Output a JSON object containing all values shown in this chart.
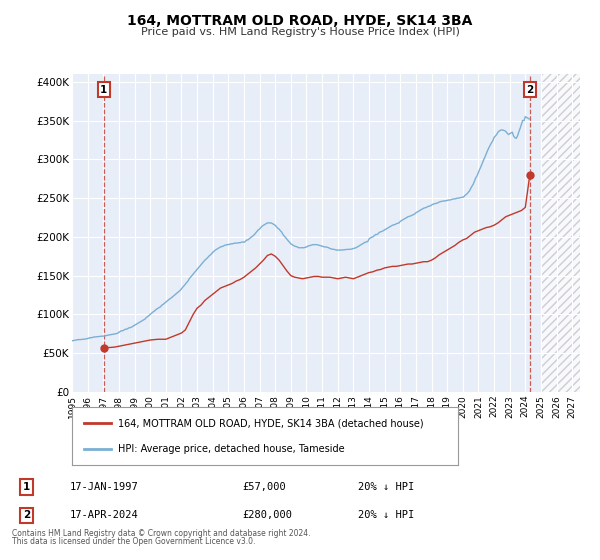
{
  "title": "164, MOTTRAM OLD ROAD, HYDE, SK14 3BA",
  "subtitle": "Price paid vs. HM Land Registry's House Price Index (HPI)",
  "xlim": [
    1995.0,
    2027.5
  ],
  "ylim": [
    0,
    410000
  ],
  "yticks": [
    0,
    50000,
    100000,
    150000,
    200000,
    250000,
    300000,
    350000,
    400000
  ],
  "ytick_labels": [
    "£0",
    "£50K",
    "£100K",
    "£150K",
    "£200K",
    "£250K",
    "£300K",
    "£350K",
    "£400K"
  ],
  "xticks": [
    1995,
    1996,
    1997,
    1998,
    1999,
    2000,
    2001,
    2002,
    2003,
    2004,
    2005,
    2006,
    2007,
    2008,
    2009,
    2010,
    2011,
    2012,
    2013,
    2014,
    2015,
    2016,
    2017,
    2018,
    2019,
    2020,
    2021,
    2022,
    2023,
    2024,
    2025,
    2026,
    2027
  ],
  "background_color": "#ffffff",
  "plot_bg_color": "#e8eef8",
  "grid_color": "#ffffff",
  "hpi_color": "#7bafd4",
  "price_color": "#c0392b",
  "marker1_x": 1997.04,
  "marker1_y": 57000,
  "marker2_x": 2024.29,
  "marker2_y": 280000,
  "vline1_x": 1997.04,
  "vline2_x": 2024.29,
  "hatch_start": 2025.0,
  "legend_label1": "164, MOTTRAM OLD ROAD, HYDE, SK14 3BA (detached house)",
  "legend_label2": "HPI: Average price, detached house, Tameside",
  "table_row1": [
    "1",
    "17-JAN-1997",
    "£57,000",
    "20% ↓ HPI"
  ],
  "table_row2": [
    "2",
    "17-APR-2024",
    "£280,000",
    "20% ↓ HPI"
  ],
  "footnote1": "Contains HM Land Registry data © Crown copyright and database right 2024.",
  "footnote2": "This data is licensed under the Open Government Licence v3.0.",
  "hpi_x": [
    1995.0,
    1995.08,
    1995.17,
    1995.25,
    1995.33,
    1995.42,
    1995.5,
    1995.58,
    1995.67,
    1995.75,
    1995.83,
    1995.92,
    1996.0,
    1996.08,
    1996.17,
    1996.25,
    1996.33,
    1996.42,
    1996.5,
    1996.58,
    1996.67,
    1996.75,
    1996.83,
    1996.92,
    1997.0,
    1997.08,
    1997.17,
    1997.25,
    1997.33,
    1997.42,
    1997.5,
    1997.58,
    1997.67,
    1997.75,
    1997.83,
    1997.92,
    1998.0,
    1998.08,
    1998.17,
    1998.25,
    1998.33,
    1998.42,
    1998.5,
    1998.58,
    1998.67,
    1998.75,
    1998.83,
    1998.92,
    1999.0,
    1999.08,
    1999.17,
    1999.25,
    1999.33,
    1999.42,
    1999.5,
    1999.58,
    1999.67,
    1999.75,
    1999.83,
    1999.92,
    2000.0,
    2000.08,
    2000.17,
    2000.25,
    2000.33,
    2000.42,
    2000.5,
    2000.58,
    2000.67,
    2000.75,
    2000.83,
    2000.92,
    2001.0,
    2001.08,
    2001.17,
    2001.25,
    2001.33,
    2001.42,
    2001.5,
    2001.58,
    2001.67,
    2001.75,
    2001.83,
    2001.92,
    2002.0,
    2002.08,
    2002.17,
    2002.25,
    2002.33,
    2002.42,
    2002.5,
    2002.58,
    2002.67,
    2002.75,
    2002.83,
    2002.92,
    2003.0,
    2003.08,
    2003.17,
    2003.25,
    2003.33,
    2003.42,
    2003.5,
    2003.58,
    2003.67,
    2003.75,
    2003.83,
    2003.92,
    2004.0,
    2004.08,
    2004.17,
    2004.25,
    2004.33,
    2004.42,
    2004.5,
    2004.58,
    2004.67,
    2004.75,
    2004.83,
    2004.92,
    2005.0,
    2005.08,
    2005.17,
    2005.25,
    2005.33,
    2005.42,
    2005.5,
    2005.58,
    2005.67,
    2005.75,
    2005.83,
    2005.92,
    2006.0,
    2006.08,
    2006.17,
    2006.25,
    2006.33,
    2006.42,
    2006.5,
    2006.58,
    2006.67,
    2006.75,
    2006.83,
    2006.92,
    2007.0,
    2007.08,
    2007.17,
    2007.25,
    2007.33,
    2007.42,
    2007.5,
    2007.58,
    2007.67,
    2007.75,
    2007.83,
    2007.92,
    2008.0,
    2008.08,
    2008.17,
    2008.25,
    2008.33,
    2008.42,
    2008.5,
    2008.58,
    2008.67,
    2008.75,
    2008.83,
    2008.92,
    2009.0,
    2009.08,
    2009.17,
    2009.25,
    2009.33,
    2009.42,
    2009.5,
    2009.58,
    2009.67,
    2009.75,
    2009.83,
    2009.92,
    2010.0,
    2010.08,
    2010.17,
    2010.25,
    2010.33,
    2010.42,
    2010.5,
    2010.58,
    2010.67,
    2010.75,
    2010.83,
    2010.92,
    2011.0,
    2011.08,
    2011.17,
    2011.25,
    2011.33,
    2011.42,
    2011.5,
    2011.58,
    2011.67,
    2011.75,
    2011.83,
    2011.92,
    2012.0,
    2012.08,
    2012.17,
    2012.25,
    2012.33,
    2012.42,
    2012.5,
    2012.58,
    2012.67,
    2012.75,
    2012.83,
    2012.92,
    2013.0,
    2013.08,
    2013.17,
    2013.25,
    2013.33,
    2013.42,
    2013.5,
    2013.58,
    2013.67,
    2013.75,
    2013.83,
    2013.92,
    2014.0,
    2014.08,
    2014.17,
    2014.25,
    2014.33,
    2014.42,
    2014.5,
    2014.58,
    2014.67,
    2014.75,
    2014.83,
    2014.92,
    2015.0,
    2015.08,
    2015.17,
    2015.25,
    2015.33,
    2015.42,
    2015.5,
    2015.58,
    2015.67,
    2015.75,
    2015.83,
    2015.92,
    2016.0,
    2016.08,
    2016.17,
    2016.25,
    2016.33,
    2016.42,
    2016.5,
    2016.58,
    2016.67,
    2016.75,
    2016.83,
    2016.92,
    2017.0,
    2017.08,
    2017.17,
    2017.25,
    2017.33,
    2017.42,
    2017.5,
    2017.58,
    2017.67,
    2017.75,
    2017.83,
    2017.92,
    2018.0,
    2018.08,
    2018.17,
    2018.25,
    2018.33,
    2018.42,
    2018.5,
    2018.58,
    2018.67,
    2018.75,
    2018.83,
    2018.92,
    2019.0,
    2019.08,
    2019.17,
    2019.25,
    2019.33,
    2019.42,
    2019.5,
    2019.58,
    2019.67,
    2019.75,
    2019.83,
    2019.92,
    2020.0,
    2020.08,
    2020.17,
    2020.25,
    2020.33,
    2020.42,
    2020.5,
    2020.58,
    2020.67,
    2020.75,
    2020.83,
    2020.92,
    2021.0,
    2021.08,
    2021.17,
    2021.25,
    2021.33,
    2021.42,
    2021.5,
    2021.58,
    2021.67,
    2021.75,
    2021.83,
    2021.92,
    2022.0,
    2022.08,
    2022.17,
    2022.25,
    2022.33,
    2022.42,
    2022.5,
    2022.58,
    2022.67,
    2022.75,
    2022.83,
    2022.92,
    2023.0,
    2023.08,
    2023.17,
    2023.25,
    2023.33,
    2023.42,
    2023.5,
    2023.58,
    2023.67,
    2023.75,
    2023.83,
    2023.92,
    2024.0,
    2024.08,
    2024.17,
    2024.25
  ],
  "hpi_y": [
    66000,
    66300,
    66600,
    67000,
    67300,
    67600,
    67500,
    67700,
    67900,
    68000,
    68200,
    68500,
    69000,
    69500,
    70000,
    70000,
    70500,
    71000,
    71000,
    71200,
    71500,
    71500,
    71800,
    72000,
    72000,
    72300,
    72700,
    73000,
    73400,
    73700,
    74000,
    74300,
    74600,
    75000,
    75300,
    75700,
    77000,
    78000,
    79000,
    79000,
    80000,
    81000,
    81000,
    82000,
    83000,
    83000,
    84000,
    85000,
    86000,
    87000,
    88000,
    89000,
    90000,
    91000,
    92000,
    93000,
    94000,
    96000,
    97000,
    98500,
    100000,
    101500,
    103000,
    104000,
    105500,
    107000,
    108000,
    109000,
    110000,
    112000,
    113000,
    114500,
    116000,
    117000,
    118500,
    120000,
    121000,
    122500,
    124000,
    125000,
    126500,
    128000,
    129500,
    131000,
    133000,
    135000,
    137000,
    139000,
    141000,
    143000,
    146000,
    148000,
    150000,
    152000,
    154000,
    156000,
    158000,
    160000,
    162000,
    164000,
    166000,
    168000,
    170000,
    171500,
    173000,
    175000,
    176500,
    178000,
    180000,
    181500,
    183000,
    184000,
    185000,
    186000,
    187000,
    187500,
    188000,
    189000,
    189500,
    190000,
    190000,
    190500,
    191000,
    191000,
    191500,
    192000,
    192000,
    192000,
    192500,
    192500,
    193000,
    193500,
    193000,
    194000,
    196000,
    196000,
    197500,
    199000,
    200000,
    201500,
    203000,
    205000,
    207000,
    209000,
    210000,
    212000,
    214000,
    215000,
    216000,
    217000,
    218000,
    218000,
    218000,
    218000,
    217000,
    216000,
    215000,
    213000,
    211000,
    210000,
    208000,
    206000,
    203000,
    201000,
    199000,
    197000,
    195000,
    193000,
    191000,
    190000,
    189000,
    188000,
    187500,
    187000,
    186000,
    186000,
    186000,
    186000,
    186000,
    186500,
    187000,
    188000,
    188500,
    189000,
    189500,
    190000,
    190000,
    190000,
    190000,
    189500,
    189000,
    188500,
    188000,
    187500,
    187000,
    187000,
    186500,
    186000,
    185000,
    184500,
    184000,
    184000,
    183500,
    183000,
    183000,
    183000,
    183000,
    183000,
    183200,
    183500,
    183500,
    183800,
    184000,
    184000,
    184000,
    184500,
    185000,
    185500,
    186000,
    187000,
    188000,
    189000,
    190000,
    191000,
    192000,
    193000,
    193500,
    194000,
    197000,
    198500,
    199500,
    200000,
    201500,
    203000,
    203000,
    204000,
    206000,
    206500,
    207000,
    208000,
    209000,
    210000,
    211000,
    212000,
    213000,
    214000,
    215000,
    215500,
    216000,
    217000,
    217500,
    218000,
    220000,
    221000,
    222000,
    223000,
    224000,
    225000,
    226000,
    226500,
    227000,
    228000,
    228500,
    229500,
    231000,
    232000,
    233000,
    234000,
    235000,
    236000,
    237000,
    237500,
    238000,
    239000,
    239500,
    240000,
    241000,
    242000,
    242500,
    243000,
    243500,
    244000,
    245000,
    245500,
    246000,
    246000,
    246500,
    246500,
    247000,
    247500,
    247500,
    248000,
    248500,
    249000,
    249000,
    249500,
    250000,
    250000,
    250500,
    251000,
    251000,
    252000,
    254000,
    255000,
    257000,
    259000,
    262000,
    265000,
    268000,
    272000,
    276000,
    279000,
    283000,
    287000,
    291000,
    295000,
    299000,
    303000,
    307000,
    311000,
    315000,
    318000,
    321000,
    324000,
    328000,
    330000,
    332000,
    335000,
    336500,
    337500,
    338000,
    337500,
    337000,
    336000,
    334000,
    332000,
    333000,
    334000,
    335000,
    330000,
    328000,
    327000,
    330000,
    335000,
    340000,
    345000,
    350000,
    350000,
    355000,
    354000,
    353000,
    352000
  ],
  "price_x": [
    1997.04,
    1997.5,
    1997.75,
    1998.0,
    1998.25,
    1998.5,
    1998.75,
    1999.0,
    1999.25,
    1999.5,
    1999.75,
    2000.0,
    2000.25,
    2000.5,
    2000.75,
    2001.0,
    2001.25,
    2001.5,
    2001.75,
    2002.0,
    2002.25,
    2002.5,
    2002.75,
    2003.0,
    2003.25,
    2003.5,
    2003.75,
    2004.0,
    2004.25,
    2004.5,
    2004.75,
    2005.0,
    2005.25,
    2005.5,
    2005.75,
    2006.0,
    2006.25,
    2006.5,
    2006.75,
    2007.0,
    2007.25,
    2007.5,
    2007.75,
    2008.0,
    2008.25,
    2008.5,
    2008.75,
    2009.0,
    2009.25,
    2009.5,
    2009.75,
    2010.0,
    2010.25,
    2010.5,
    2010.75,
    2011.0,
    2011.25,
    2011.5,
    2011.75,
    2012.0,
    2012.25,
    2012.5,
    2012.75,
    2013.0,
    2013.25,
    2013.5,
    2013.75,
    2014.0,
    2014.25,
    2014.5,
    2014.75,
    2015.0,
    2015.25,
    2015.5,
    2015.75,
    2016.0,
    2016.25,
    2016.5,
    2016.75,
    2017.0,
    2017.25,
    2017.5,
    2017.75,
    2018.0,
    2018.25,
    2018.5,
    2018.75,
    2019.0,
    2019.25,
    2019.5,
    2019.75,
    2020.0,
    2020.25,
    2020.5,
    2020.75,
    2021.0,
    2021.25,
    2021.5,
    2021.75,
    2022.0,
    2022.25,
    2022.5,
    2022.75,
    2023.0,
    2023.25,
    2023.5,
    2023.75,
    2024.0,
    2024.29
  ],
  "price_y": [
    57000,
    57500,
    58000,
    59000,
    60000,
    61000,
    62000,
    63000,
    64000,
    65000,
    66000,
    67000,
    67500,
    68000,
    68000,
    68000,
    70000,
    72000,
    74000,
    76000,
    80000,
    90000,
    100000,
    108000,
    112000,
    118000,
    122000,
    126000,
    130000,
    134000,
    136000,
    138000,
    140000,
    143000,
    145000,
    148000,
    152000,
    156000,
    160000,
    165000,
    170000,
    176000,
    178000,
    175000,
    170000,
    163000,
    156000,
    150000,
    148000,
    147000,
    146000,
    147000,
    148000,
    149000,
    149000,
    148000,
    148000,
    148000,
    147000,
    146000,
    147000,
    148000,
    147000,
    146000,
    148000,
    150000,
    152000,
    154000,
    155000,
    157000,
    158000,
    160000,
    161000,
    162000,
    162000,
    163000,
    164000,
    165000,
    165000,
    166000,
    167000,
    168000,
    168000,
    170000,
    173000,
    177000,
    180000,
    183000,
    186000,
    189000,
    193000,
    196000,
    198000,
    202000,
    206000,
    208000,
    210000,
    212000,
    213000,
    215000,
    218000,
    222000,
    226000,
    228000,
    230000,
    232000,
    234000,
    238000,
    280000
  ]
}
